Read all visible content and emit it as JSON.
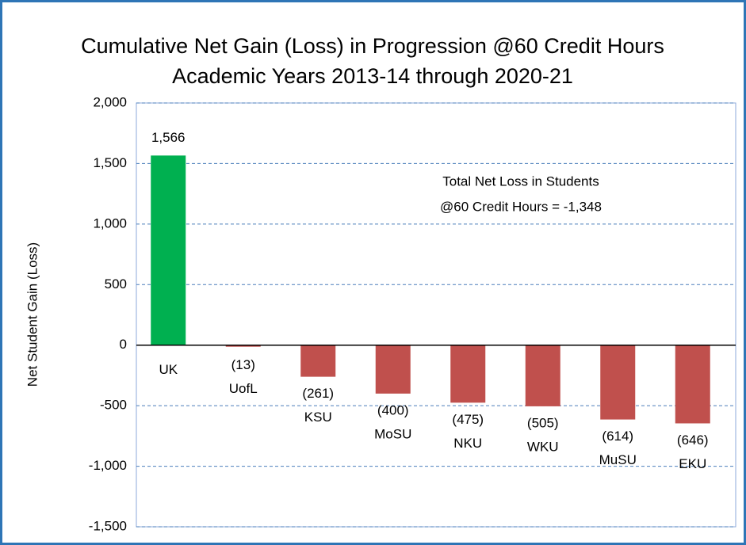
{
  "chart_data": {
    "type": "bar",
    "title": "Cumulative Net Gain (Loss) in Progression @60 Credit Hours",
    "subtitle": "Academic Years 2013-14 through 2020-21",
    "y_label": "Net Student Gain (Loss)",
    "categories": [
      "UK",
      "UofL",
      "KSU",
      "MoSU",
      "NKU",
      "WKU",
      "MuSU",
      "EKU"
    ],
    "values": [
      1566,
      -13,
      -261,
      -400,
      -475,
      -505,
      -614,
      -646
    ],
    "value_labels": [
      "1,566",
      "(13)",
      "(261)",
      "(400)",
      "(475)",
      "(505)",
      "(614)",
      "(646)"
    ],
    "colors": [
      "#00b050",
      "#c0504d",
      "#c0504d",
      "#c0504d",
      "#c0504d",
      "#c0504d",
      "#c0504d",
      "#c0504d"
    ],
    "ylim": [
      -1500,
      2000
    ],
    "yticks": [
      {
        "value": -1500,
        "label": "-1,500"
      },
      {
        "value": -1000,
        "label": "-1,000"
      },
      -500,
      0,
      500,
      {
        "value": 1000,
        "label": "1,000"
      },
      {
        "value": 1500,
        "label": "1,500"
      },
      {
        "value": 2000,
        "label": "2,000"
      }
    ],
    "grid": true,
    "annotations": [
      "Total Net Loss in Students",
      "@60 Credit Hours =  -1,348"
    ]
  }
}
